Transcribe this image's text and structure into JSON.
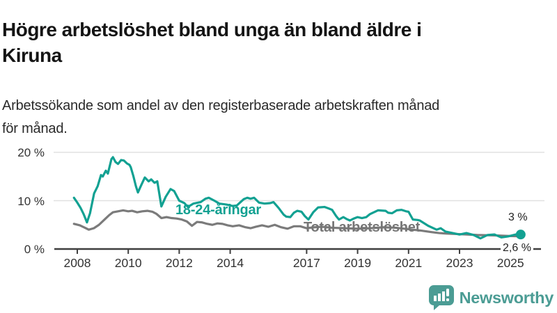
{
  "header": {
    "title_line1": "Högre arbetslöshet bland unga än bland äldre i",
    "title_line2": "Kiruna",
    "subtitle_line1": "Arbetssökande som andel av den registerbaserade arbetskraften månad",
    "subtitle_line2": "för månad."
  },
  "footer": {
    "brand": "Newsworthy"
  },
  "colors": {
    "young_line": "#12a192",
    "total_line": "#7b7b7b",
    "axis": "#3f3f3f",
    "grid": "#e0e0e0",
    "tick_text": "#333333",
    "logo_teal": "#4b9c94"
  },
  "chart_data": {
    "type": "line",
    "title": "Högre arbetslöshet bland unga än bland äldre i Kiruna",
    "subtitle": "Arbetssökande som andel av den registerbaserade arbetskraften månad för månad.",
    "grid": "horizontal",
    "legend_position": "inline-labels",
    "x_axis": {
      "ticks": [
        2008,
        2010,
        2012,
        2014,
        2017,
        2019,
        2021,
        2023,
        2025
      ],
      "range": [
        2007.8,
        2025.6
      ]
    },
    "y_axis": {
      "unit": "%",
      "range": [
        0,
        21
      ],
      "ticks": [
        {
          "value": 0,
          "label": "0 %"
        },
        {
          "value": 10,
          "label": "10 %"
        },
        {
          "value": 20,
          "label": "20 %"
        }
      ]
    },
    "series": [
      {
        "name": "18-24-åringar",
        "label": "18-24-åringar",
        "color": "#12a192",
        "end_label": "3 %",
        "end_value": 3.0,
        "points": [
          [
            2007.87,
            10.6
          ],
          [
            2008.0,
            9.6
          ],
          [
            2008.13,
            8.5
          ],
          [
            2008.25,
            7.2
          ],
          [
            2008.38,
            5.5
          ],
          [
            2008.5,
            7.4
          ],
          [
            2008.66,
            11.5
          ],
          [
            2008.8,
            13.0
          ],
          [
            2008.93,
            15.3
          ],
          [
            2009.0,
            15.0
          ],
          [
            2009.12,
            16.2
          ],
          [
            2009.2,
            15.6
          ],
          [
            2009.34,
            18.6
          ],
          [
            2009.4,
            19.0
          ],
          [
            2009.5,
            18.0
          ],
          [
            2009.6,
            17.6
          ],
          [
            2009.72,
            18.4
          ],
          [
            2009.83,
            18.3
          ],
          [
            2009.95,
            17.7
          ],
          [
            2010.05,
            17.4
          ],
          [
            2010.1,
            16.9
          ],
          [
            2010.2,
            15.1
          ],
          [
            2010.3,
            13.0
          ],
          [
            2010.38,
            11.7
          ],
          [
            2010.5,
            13.1
          ],
          [
            2010.65,
            14.8
          ],
          [
            2010.8,
            14.0
          ],
          [
            2010.9,
            14.4
          ],
          [
            2011.03,
            13.7
          ],
          [
            2011.14,
            14.0
          ],
          [
            2011.3,
            8.8
          ],
          [
            2011.47,
            10.8
          ],
          [
            2011.66,
            12.4
          ],
          [
            2011.8,
            12.0
          ],
          [
            2012.0,
            10.0
          ],
          [
            2012.2,
            9.5
          ],
          [
            2012.34,
            8.7
          ],
          [
            2012.56,
            9.4
          ],
          [
            2012.84,
            9.7
          ],
          [
            2013.03,
            10.4
          ],
          [
            2013.16,
            10.6
          ],
          [
            2013.38,
            10.0
          ],
          [
            2013.57,
            9.4
          ],
          [
            2013.85,
            9.2
          ],
          [
            2014.1,
            8.9
          ],
          [
            2014.26,
            9.0
          ],
          [
            2014.53,
            10.3
          ],
          [
            2014.67,
            10.6
          ],
          [
            2014.8,
            10.4
          ],
          [
            2014.94,
            10.6
          ],
          [
            2015.13,
            9.6
          ],
          [
            2015.35,
            9.4
          ],
          [
            2015.57,
            9.5
          ],
          [
            2015.7,
            9.7
          ],
          [
            2015.9,
            8.5
          ],
          [
            2016.1,
            7.1
          ],
          [
            2016.2,
            6.7
          ],
          [
            2016.36,
            6.6
          ],
          [
            2016.5,
            7.5
          ],
          [
            2016.63,
            7.9
          ],
          [
            2016.8,
            7.7
          ],
          [
            2016.93,
            6.8
          ],
          [
            2017.07,
            6.1
          ],
          [
            2017.26,
            7.6
          ],
          [
            2017.45,
            8.6
          ],
          [
            2017.7,
            8.7
          ],
          [
            2017.86,
            8.4
          ],
          [
            2018.0,
            8.1
          ],
          [
            2018.16,
            6.8
          ],
          [
            2018.27,
            6.1
          ],
          [
            2018.44,
            6.6
          ],
          [
            2018.57,
            6.2
          ],
          [
            2018.7,
            5.9
          ],
          [
            2018.85,
            6.3
          ],
          [
            2019.0,
            6.6
          ],
          [
            2019.17,
            6.4
          ],
          [
            2019.34,
            6.6
          ],
          [
            2019.48,
            7.2
          ],
          [
            2019.8,
            8.0
          ],
          [
            2020.1,
            7.9
          ],
          [
            2020.2,
            7.5
          ],
          [
            2020.35,
            7.4
          ],
          [
            2020.54,
            8.0
          ],
          [
            2020.73,
            8.1
          ],
          [
            2020.9,
            7.8
          ],
          [
            2021.0,
            7.7
          ],
          [
            2021.17,
            6.1
          ],
          [
            2021.36,
            6.0
          ],
          [
            2021.44,
            5.9
          ],
          [
            2021.77,
            4.8
          ],
          [
            2022.1,
            4.0
          ],
          [
            2022.26,
            4.3
          ],
          [
            2022.45,
            3.6
          ],
          [
            2022.73,
            3.3
          ],
          [
            2023.0,
            3.0
          ],
          [
            2023.27,
            3.3
          ],
          [
            2023.55,
            2.9
          ],
          [
            2023.82,
            2.2
          ],
          [
            2024.1,
            2.9
          ],
          [
            2024.37,
            3.0
          ],
          [
            2024.64,
            2.4
          ],
          [
            2024.9,
            2.6
          ],
          [
            2025.2,
            3.0
          ],
          [
            2025.4,
            3.0
          ]
        ]
      },
      {
        "name": "Total arbetslöshet",
        "label": "Total arbetslöshet",
        "color": "#7b7b7b",
        "end_label": "2,6 %",
        "end_value": 2.6,
        "points": [
          [
            2007.87,
            5.2
          ],
          [
            2008.1,
            4.9
          ],
          [
            2008.3,
            4.4
          ],
          [
            2008.45,
            4.0
          ],
          [
            2008.65,
            4.3
          ],
          [
            2008.85,
            5.0
          ],
          [
            2009.05,
            6.0
          ],
          [
            2009.25,
            7.0
          ],
          [
            2009.4,
            7.6
          ],
          [
            2009.6,
            7.8
          ],
          [
            2009.8,
            8.0
          ],
          [
            2010.0,
            7.8
          ],
          [
            2010.15,
            7.9
          ],
          [
            2010.35,
            7.6
          ],
          [
            2010.55,
            7.8
          ],
          [
            2010.75,
            7.9
          ],
          [
            2010.95,
            7.7
          ],
          [
            2011.1,
            7.3
          ],
          [
            2011.3,
            6.4
          ],
          [
            2011.5,
            6.6
          ],
          [
            2011.7,
            6.4
          ],
          [
            2011.9,
            6.3
          ],
          [
            2012.1,
            6.1
          ],
          [
            2012.3,
            5.7
          ],
          [
            2012.5,
            4.8
          ],
          [
            2012.7,
            5.6
          ],
          [
            2012.9,
            5.5
          ],
          [
            2013.1,
            5.2
          ],
          [
            2013.3,
            5.0
          ],
          [
            2013.5,
            5.3
          ],
          [
            2013.7,
            5.2
          ],
          [
            2013.9,
            4.9
          ],
          [
            2014.1,
            4.7
          ],
          [
            2014.35,
            4.9
          ],
          [
            2014.6,
            4.5
          ],
          [
            2014.8,
            4.3
          ],
          [
            2015.0,
            4.6
          ],
          [
            2015.25,
            4.9
          ],
          [
            2015.5,
            4.6
          ],
          [
            2015.75,
            5.0
          ],
          [
            2016.0,
            4.5
          ],
          [
            2016.25,
            4.2
          ],
          [
            2016.5,
            4.7
          ],
          [
            2016.75,
            4.7
          ],
          [
            2017.0,
            4.3
          ],
          [
            2017.3,
            4.5
          ],
          [
            2017.6,
            4.6
          ],
          [
            2018.0,
            4.4
          ],
          [
            2018.5,
            4.3
          ],
          [
            2019.0,
            4.2
          ],
          [
            2019.5,
            4.3
          ],
          [
            2020.0,
            4.5
          ],
          [
            2020.5,
            4.4
          ],
          [
            2021.0,
            4.1
          ],
          [
            2021.5,
            3.8
          ],
          [
            2021.9,
            3.5
          ],
          [
            2022.2,
            3.3
          ],
          [
            2022.5,
            3.2
          ],
          [
            2022.9,
            3.1
          ],
          [
            2023.3,
            3.0
          ],
          [
            2023.7,
            2.9
          ],
          [
            2024.1,
            2.85
          ],
          [
            2024.5,
            2.8
          ],
          [
            2024.9,
            2.7
          ],
          [
            2025.2,
            2.65
          ],
          [
            2025.4,
            2.6
          ]
        ]
      }
    ]
  }
}
